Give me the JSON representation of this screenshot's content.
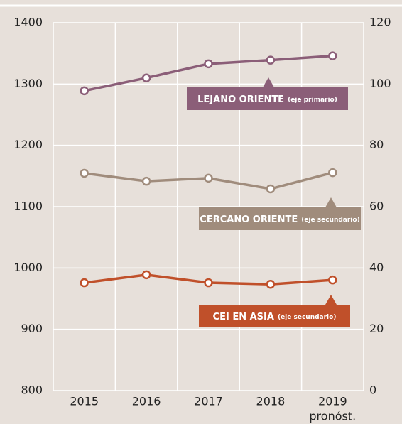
{
  "chart_data": {
    "type": "line",
    "categories": [
      "2015",
      "2016",
      "2017",
      "2018",
      "2019"
    ],
    "category_sublabels": [
      null,
      null,
      null,
      null,
      "pronóst."
    ],
    "ylim": [
      800,
      1400
    ],
    "yticks": [
      800,
      900,
      1000,
      1100,
      1200,
      1300,
      1400
    ],
    "y2lim": [
      0,
      120
    ],
    "y2ticks": [
      0,
      20,
      40,
      60,
      80,
      100,
      120
    ],
    "grid": true,
    "series": [
      {
        "name": "LEJANO ORIENTE",
        "note": "(eje primario)",
        "color": "#8b5e78",
        "axis": "y",
        "values": [
          1289,
          1310,
          1333,
          1339,
          1346
        ]
      },
      {
        "name": "CERCANO ORIENTE",
        "note": "(eje secundario)",
        "color": "#a08c7c",
        "axis": "y2",
        "values": [
          70.9,
          68.3,
          69.3,
          65.8,
          71.1
        ]
      },
      {
        "name": "CEI EN ASIA",
        "note": "(eje secundario)",
        "color": "#c0502a",
        "axis": "y2",
        "values": [
          35.2,
          37.8,
          35.2,
          34.7,
          36.1
        ]
      }
    ]
  }
}
